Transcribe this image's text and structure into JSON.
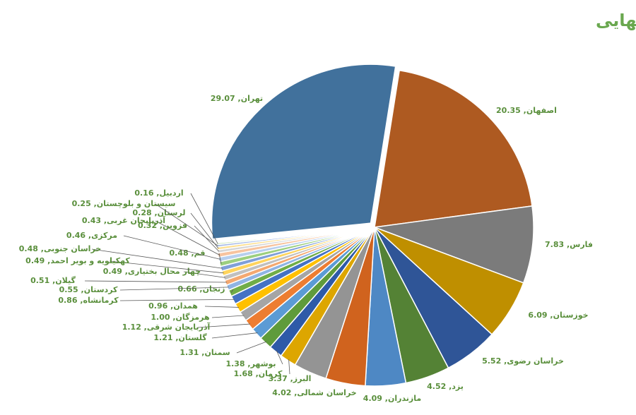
{
  "chart_data": {
    "type": "pie",
    "title": "سهم استان ها از فروش نهایی",
    "label_separator": ", ",
    "categories": [
      "اصفهان",
      "فارس",
      "خوزستان",
      "خراسان رضوی",
      "یزد",
      "مازندران",
      "خراسان شمالی",
      "البرز",
      "کرمان",
      "بوشهر",
      "سمنان",
      "گلستان",
      "آذربایجان شرقی",
      "هرمزگان",
      "همدان",
      "کرمانشاه",
      "زنجان",
      "کردستان",
      "گیلان",
      "چهار محال بختیاری",
      "کهکیلویه و بویر احمد",
      "خراسان جنوبی",
      "قم",
      "مرکزی",
      "آذربایجان غربی",
      "قزوین",
      "لرستان",
      "سیستان و بلوچستان",
      "اردبیل",
      "تهران"
    ],
    "values": [
      20.35,
      7.83,
      6.09,
      5.52,
      4.52,
      4.09,
      4.02,
      3.37,
      1.68,
      1.38,
      1.31,
      1.21,
      1.12,
      1.0,
      0.96,
      0.86,
      0.66,
      0.55,
      0.51,
      0.49,
      0.49,
      0.48,
      0.48,
      0.46,
      0.43,
      0.32,
      0.28,
      0.25,
      0.16,
      29.07
    ],
    "value_labels": [
      "20.35",
      "7.83",
      "6.09",
      "5.52",
      "4.52",
      "4.09",
      "4.02",
      "3.37",
      "1.68",
      "1.38",
      "1.31",
      "1.21",
      "1.12",
      "1.00",
      "0.96",
      "0.86",
      "0.66",
      "0.55",
      "0.51",
      "0.49",
      "0.49",
      "0.48",
      "0.48",
      "0.46",
      "0.43",
      "0.32",
      "0.28",
      "0.25",
      "0.16",
      "29.07"
    ],
    "colors": [
      "#ae5a21",
      "#7b7b7b",
      "#bf8f00",
      "#2f5597",
      "#548235",
      "#4e88c4",
      "#d0631e",
      "#949494",
      "#dda600",
      "#2e5aa8",
      "#5f9b3b",
      "#5b9bd5",
      "#ed7d31",
      "#a5a5a5",
      "#ffc000",
      "#4472c4",
      "#70ad47",
      "#8fb4e3",
      "#f4a870",
      "#c0c0c0",
      "#ffd45c",
      "#7f9fd8",
      "#9ccf7f",
      "#b7cfee",
      "#f7c39e",
      "#d6d6d6",
      "#ffe08f",
      "#a9bde8",
      "#b6dea0",
      "#41719c"
    ]
  }
}
